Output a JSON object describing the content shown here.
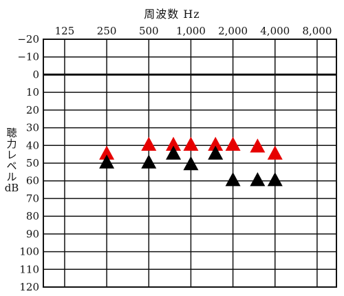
{
  "chart_data": {
    "type": "scatter",
    "title": "周波数 Hz",
    "xlabel": "周波数 Hz",
    "ylabel": "聴力レベル dB",
    "x_tick_labels": [
      "125",
      "250",
      "500",
      "1,000",
      "2,000",
      "4,000",
      "8,000"
    ],
    "x_ticks": [
      125,
      250,
      500,
      1000,
      2000,
      4000,
      8000
    ],
    "y_tick_labels": [
      "−20",
      "−10",
      "0",
      "10",
      "20",
      "30",
      "40",
      "50",
      "60",
      "70",
      "80",
      "90",
      "100",
      "110",
      "120"
    ],
    "y_ticks": [
      -20,
      -10,
      0,
      10,
      20,
      30,
      40,
      50,
      60,
      70,
      80,
      90,
      100,
      110,
      120
    ],
    "x_scale": "log2",
    "y_inverted": true,
    "ylim": [
      -20,
      120
    ],
    "grid": true,
    "series": [
      {
        "color": "#e60000",
        "marker": "triangle",
        "points": [
          {
            "x": 250,
            "y": 45
          },
          {
            "x": 500,
            "y": 40
          },
          {
            "x": 750,
            "y": 40
          },
          {
            "x": 1000,
            "y": 40
          },
          {
            "x": 1500,
            "y": 40
          },
          {
            "x": 2000,
            "y": 40
          },
          {
            "x": 3000,
            "y": 41
          },
          {
            "x": 4000,
            "y": 45
          }
        ]
      },
      {
        "color": "#000000",
        "marker": "triangle",
        "points": [
          {
            "x": 250,
            "y": 50
          },
          {
            "x": 500,
            "y": 50
          },
          {
            "x": 750,
            "y": 45
          },
          {
            "x": 1000,
            "y": 51
          },
          {
            "x": 1500,
            "y": 45
          },
          {
            "x": 2000,
            "y": 60
          },
          {
            "x": 3000,
            "y": 60
          },
          {
            "x": 4000,
            "y": 60
          }
        ]
      }
    ]
  }
}
